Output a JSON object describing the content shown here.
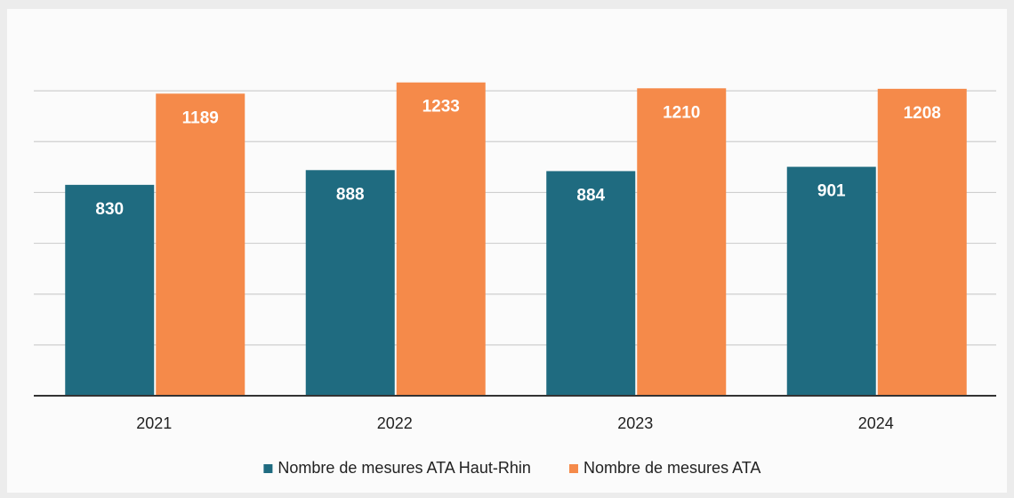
{
  "chart_data": {
    "type": "bar",
    "categories": [
      "2021",
      "2022",
      "2023",
      "2024"
    ],
    "series": [
      {
        "name": "Nombre de mesures ATA Haut-Rhin",
        "color": "#1f6b80",
        "values": [
          830,
          888,
          884,
          901
        ]
      },
      {
        "name": "Nombre de mesures ATA",
        "color": "#f58a4a",
        "values": [
          1189,
          1233,
          1210,
          1208
        ]
      }
    ],
    "ylim": [
      0,
      1400
    ],
    "yticks": [
      0,
      200,
      400,
      600,
      800,
      1000,
      1200
    ],
    "grid": true,
    "legend": "bottom"
  }
}
